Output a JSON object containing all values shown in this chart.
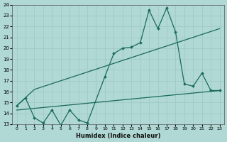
{
  "bg_color": "#b0d8d4",
  "line_color": "#1a6b5a",
  "grid_color": "#9dc8c4",
  "xlabel": "Humidex (Indice chaleur)",
  "xlim": [
    -0.5,
    23.5
  ],
  "ylim": [
    13,
    24
  ],
  "xticks": [
    0,
    1,
    2,
    3,
    4,
    5,
    6,
    7,
    8,
    9,
    10,
    11,
    12,
    13,
    14,
    15,
    16,
    17,
    18,
    19,
    20,
    21,
    22,
    23
  ],
  "yticks": [
    13,
    14,
    15,
    16,
    17,
    18,
    19,
    20,
    21,
    22,
    23,
    24
  ],
  "line1_x": [
    0,
    2,
    20,
    23
  ],
  "line1_y": [
    14.7,
    16.2,
    21.0,
    21.8
  ],
  "line2_x": [
    0,
    23
  ],
  "line2_y": [
    14.3,
    16.1
  ],
  "line3_x": [
    0,
    1,
    2,
    3,
    4,
    5,
    6,
    7,
    8,
    10,
    11,
    12,
    13,
    14,
    15,
    16,
    17,
    18,
    19,
    20,
    21,
    22,
    23
  ],
  "line3_y": [
    14.7,
    15.4,
    13.6,
    13.1,
    14.3,
    12.9,
    14.3,
    13.4,
    13.1,
    17.4,
    19.5,
    20.0,
    20.1,
    20.5,
    23.5,
    21.8,
    23.7,
    21.5,
    16.7,
    16.5,
    17.7,
    16.1,
    16.1
  ]
}
